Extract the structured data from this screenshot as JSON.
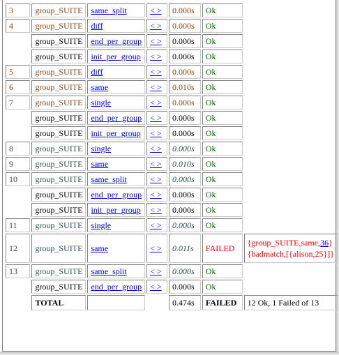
{
  "rows": [
    {
      "num": "3",
      "suite": "group_SUITE",
      "case": "same_split",
      "nav": "< >",
      "time": "0.000s",
      "result": "Ok",
      "style": "brown"
    },
    {
      "num": "4",
      "suite": "group_SUITE",
      "case": "diff",
      "nav": "< >",
      "time": "0.000s",
      "result": "Ok",
      "style": "brown"
    },
    {
      "num": "",
      "suite": "group_SUITE",
      "case": "end_per_group",
      "nav": "< >",
      "time": "0.000s",
      "result": "Ok",
      "style": "black"
    },
    {
      "num": "",
      "suite": "group_SUITE",
      "case": "init_per_group",
      "nav": "< >",
      "time": "0.000s",
      "result": "Ok",
      "style": "black"
    },
    {
      "num": "5",
      "suite": "group_SUITE",
      "case": "diff",
      "nav": "< >",
      "time": "0.000s",
      "result": "Ok",
      "style": "brown"
    },
    {
      "num": "6",
      "suite": "group_SUITE",
      "case": "same",
      "nav": "< >",
      "time": "0.010s",
      "result": "Ok",
      "style": "brown"
    },
    {
      "num": "7",
      "suite": "group_SUITE",
      "case": "single",
      "nav": "< >",
      "time": "0.000s",
      "result": "Ok",
      "style": "brown"
    },
    {
      "num": "",
      "suite": "group_SUITE",
      "case": "end_per_group",
      "nav": "< >",
      "time": "0.000s",
      "result": "Ok",
      "style": "black"
    },
    {
      "num": "",
      "suite": "group_SUITE",
      "case": "init_per_group",
      "nav": "< >",
      "time": "0.000s",
      "result": "Ok",
      "style": "black"
    },
    {
      "num": "8",
      "suite": "group_SUITE",
      "case": "single",
      "nav": "< >",
      "time": "0.000s",
      "result": "Ok",
      "style": "teal"
    },
    {
      "num": "9",
      "suite": "group_SUITE",
      "case": "same",
      "nav": "< >",
      "time": "0.010s",
      "result": "Ok",
      "style": "teal"
    },
    {
      "num": "10",
      "suite": "group_SUITE",
      "case": "same_split",
      "nav": "< >",
      "time": "0.000s",
      "result": "Ok",
      "style": "teal"
    },
    {
      "num": "",
      "suite": "group_SUITE",
      "case": "end_per_group",
      "nav": "< >",
      "time": "0.000s",
      "result": "Ok",
      "style": "black"
    },
    {
      "num": "",
      "suite": "group_SUITE",
      "case": "init_per_group",
      "nav": "< >",
      "time": "0.000s",
      "result": "Ok",
      "style": "black"
    },
    {
      "num": "11",
      "suite": "group_SUITE",
      "case": "single",
      "nav": "< >",
      "time": "0.000s",
      "result": "Ok",
      "style": "teal"
    }
  ],
  "failed_row": {
    "num": "12",
    "suite": "group_SUITE",
    "case": "same",
    "nav": "< >",
    "time": "0.011s",
    "result": "FAILED",
    "msg_line1_pre": "{group_SUITE,same,",
    "msg_link": "36",
    "msg_line1_post": "}",
    "msg_line2": "{badmatch,[{alison,25}]}"
  },
  "rows_after": [
    {
      "num": "13",
      "suite": "group_SUITE",
      "case": "same_split",
      "nav": "< >",
      "time": "0.000s",
      "result": "Ok",
      "style": "teal"
    },
    {
      "num": "",
      "suite": "group_SUITE",
      "case": "end_per_group",
      "nav": "< >",
      "time": "0.000s",
      "result": "Ok",
      "style": "black"
    }
  ],
  "total": {
    "label": "TOTAL",
    "time": "0.474s",
    "result": "FAILED",
    "summary": "12 Ok, 1 Failed of 13"
  },
  "colors": {
    "brown": "#8b4513",
    "teal": "#2f4f4f",
    "ok": "#006400",
    "fail": "#ff0000",
    "link": "#0000ee"
  }
}
